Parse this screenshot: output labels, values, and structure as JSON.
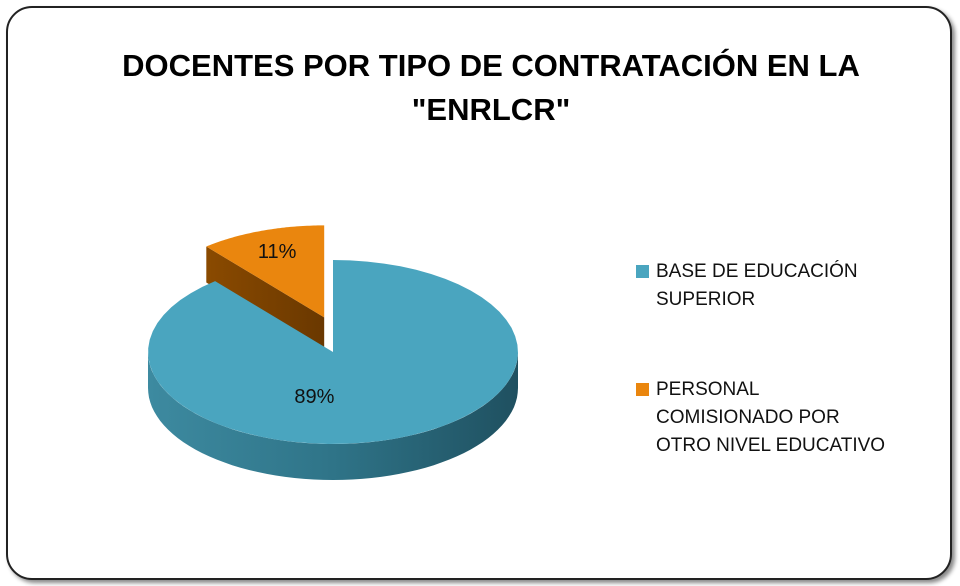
{
  "chart_data": {
    "type": "pie",
    "title": "DOCENTES POR TIPO DE CONTRATACIÓN EN LA \"ENRLCR\"",
    "categories": [
      "BASE DE EDUCACIÓN SUPERIOR",
      "PERSONAL COMISIONADO POR OTRO NIVEL EDUCATIVO"
    ],
    "values": [
      89,
      11
    ],
    "value_labels": [
      "89%",
      "11%"
    ],
    "colors": [
      "#4aa5bf",
      "#ea860e"
    ],
    "legend": "right"
  }
}
